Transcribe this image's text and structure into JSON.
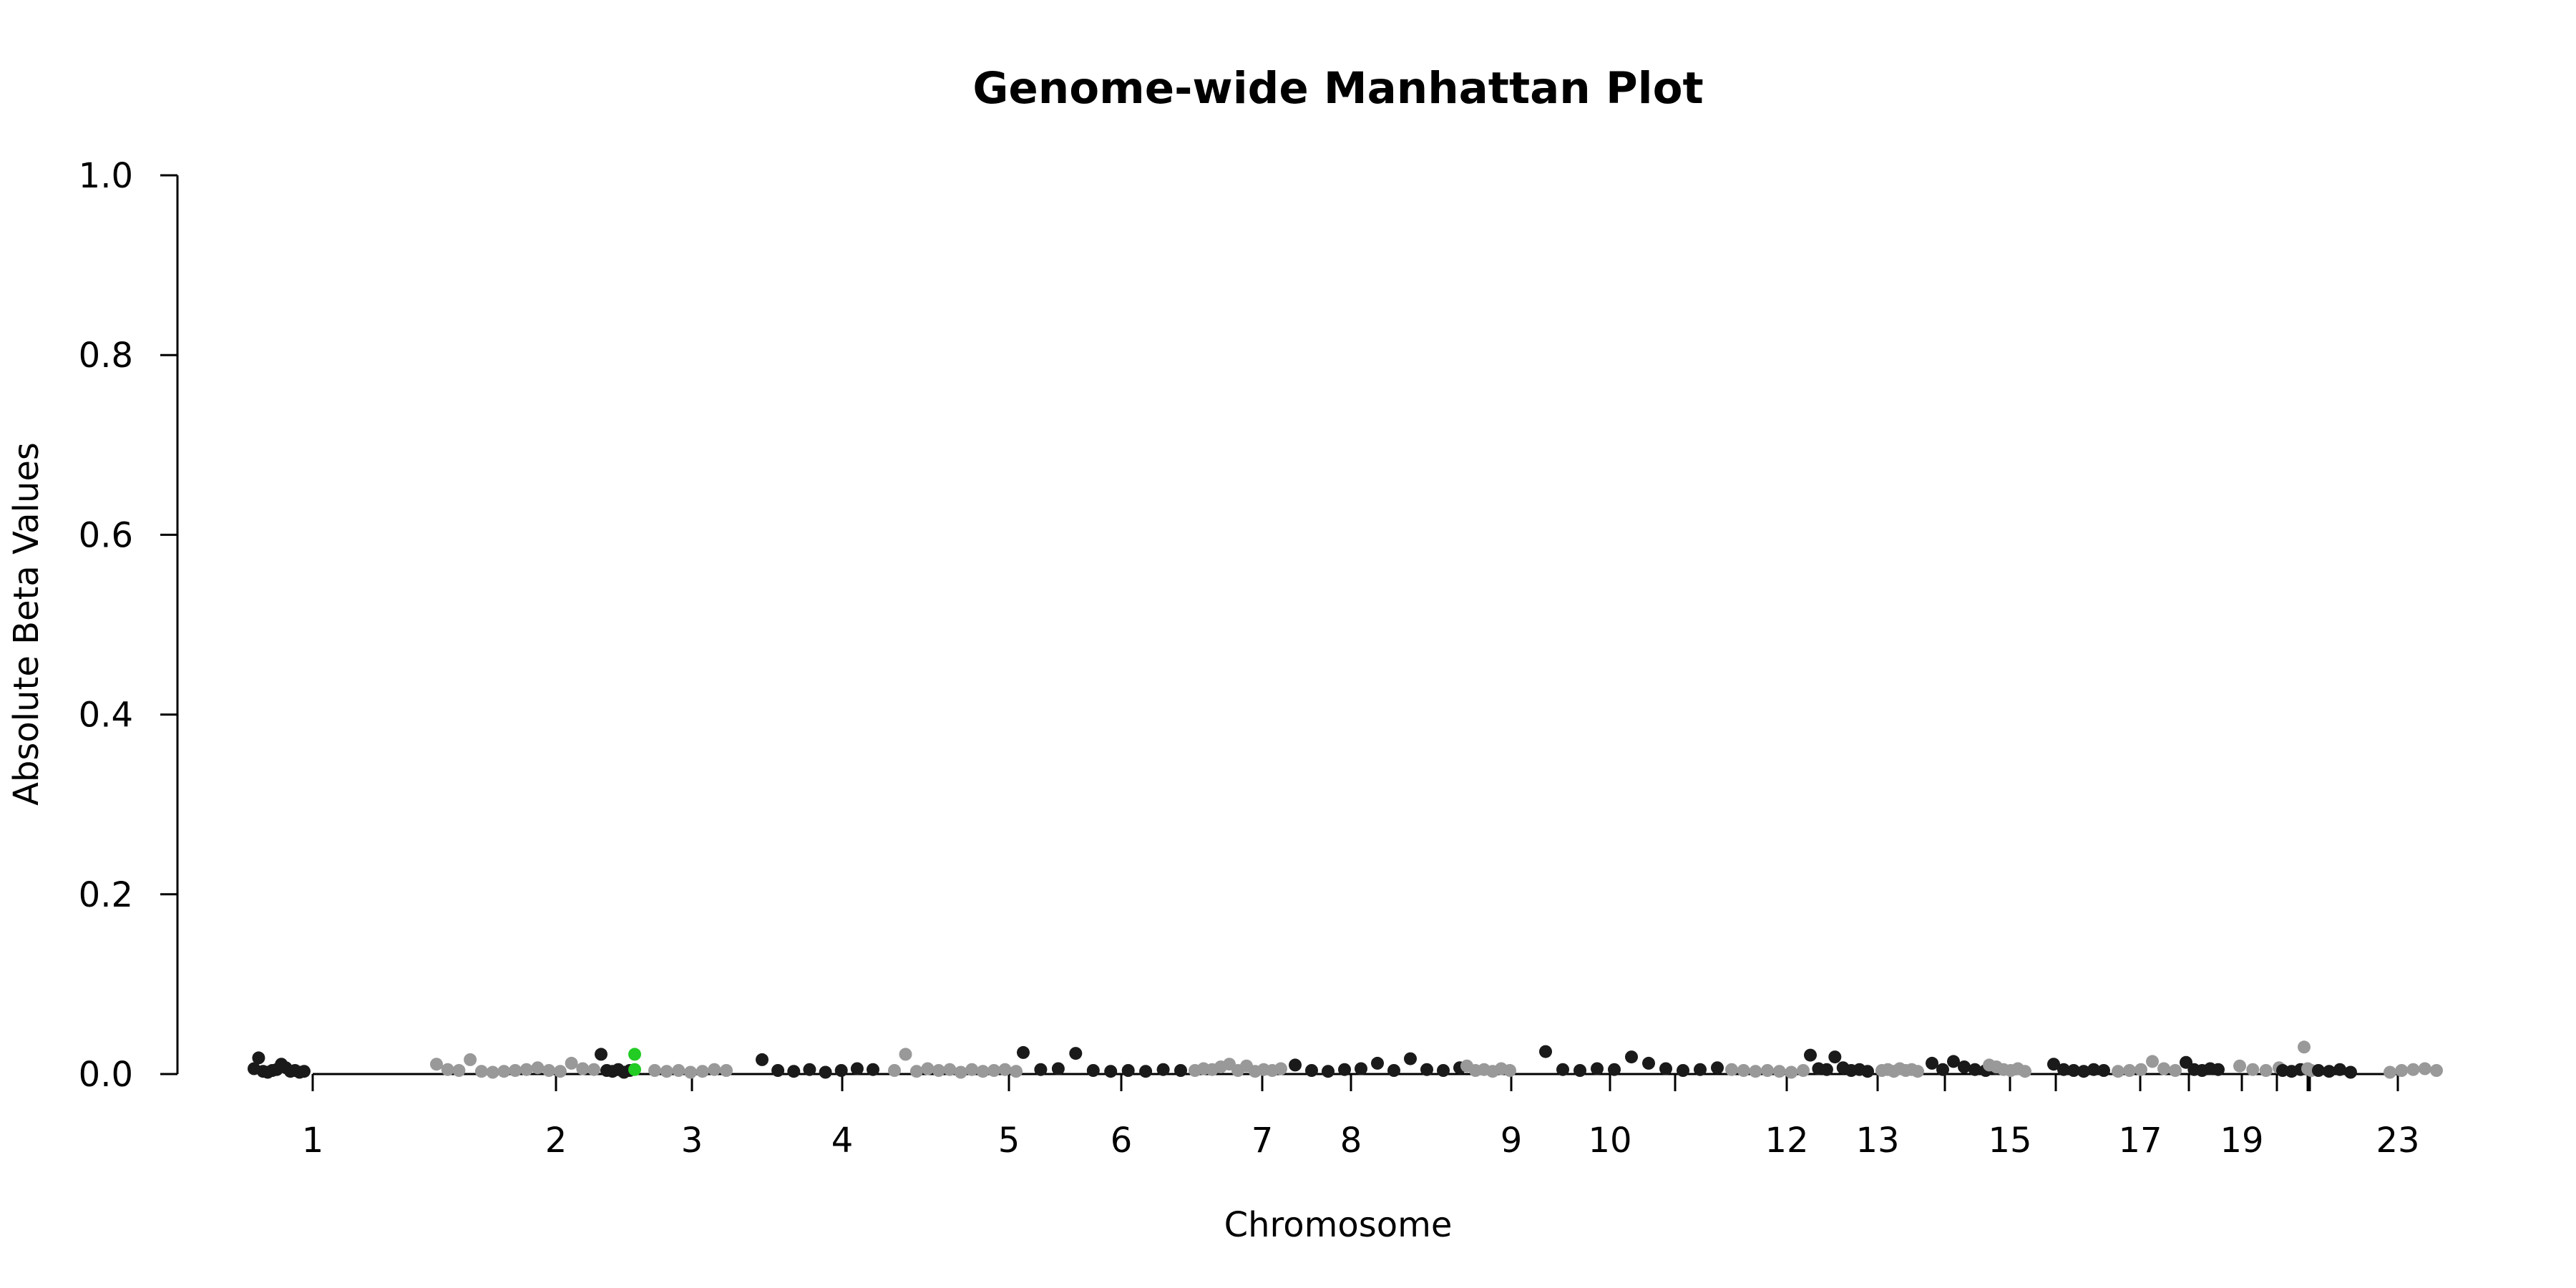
{
  "chart_data": {
    "type": "scatter",
    "title": "Genome-wide Manhattan Plot",
    "xlabel": "Chromosome",
    "ylabel": "Absolute Beta Values",
    "ylim": [
      0,
      1.0
    ],
    "yticks": [
      0.0,
      0.2,
      0.4,
      0.6,
      0.8,
      1.0
    ],
    "ytick_labels": [
      "0.0",
      "0.2",
      "0.4",
      "0.6",
      "0.8",
      "1.0"
    ],
    "chromosome_labels": [
      "1",
      "2",
      "3",
      "4",
      "5",
      "6",
      "7",
      "8",
      "9",
      "10",
      "12",
      "13",
      "15",
      "17",
      "19",
      "23"
    ],
    "grid": false,
    "legend": "none",
    "colors": {
      "odd_chromosome": "#1a1a1a",
      "even_chromosome": "#999999",
      "highlight": "#22cc22",
      "axis": "#000000"
    },
    "chromosomes": [
      {
        "chr": "1",
        "points": [
          0.006,
          0.018,
          0.003,
          0.002,
          0.004,
          0.005,
          0.011,
          0.007,
          0.003,
          0.004,
          0.002,
          0.003
        ]
      },
      {
        "chr": "2",
        "points": [
          0.011,
          0.005,
          0.004,
          0.016,
          0.003,
          0.002,
          0.003,
          0.004,
          0.005,
          0.007,
          0.004,
          0.003,
          0.012,
          0.006,
          0.005
        ]
      },
      {
        "chr": "2b",
        "points": [
          0.022,
          0.004,
          0.003,
          0.005,
          0.002,
          0.004
        ]
      },
      {
        "chr": "3",
        "points": [
          0.004,
          0.003,
          0.004,
          0.002,
          0.003,
          0.005,
          0.004
        ]
      },
      {
        "chr": "4",
        "points": [
          0.016,
          0.004,
          0.003,
          0.005,
          0.002,
          0.004,
          0.006,
          0.005
        ]
      },
      {
        "chr": "5",
        "points": [
          0.004,
          0.022,
          0.003,
          0.006,
          0.004,
          0.005,
          0.002,
          0.005,
          0.003,
          0.004,
          0.005,
          0.003
        ]
      },
      {
        "chr": "6",
        "points": [
          0.024,
          0.005,
          0.006,
          0.023,
          0.004,
          0.003,
          0.004,
          0.003,
          0.005,
          0.004
        ]
      },
      {
        "chr": "7",
        "points": [
          0.004,
          0.006,
          0.005,
          0.008,
          0.011,
          0.004,
          0.009,
          0.003,
          0.005,
          0.004,
          0.006
        ]
      },
      {
        "chr": "8",
        "points": [
          0.01,
          0.004,
          0.003,
          0.005,
          0.006,
          0.012,
          0.004,
          0.017,
          0.005,
          0.004,
          0.007
        ]
      },
      {
        "chr": "9",
        "points": [
          0.009,
          0.004,
          0.005,
          0.003,
          0.006,
          0.004
        ]
      },
      {
        "chr": "10",
        "points": [
          0.025,
          0.005,
          0.004,
          0.006,
          0.005,
          0.019,
          0.012,
          0.006,
          0.004,
          0.005,
          0.007
        ]
      },
      {
        "chr": "12",
        "points": [
          0.005,
          0.004,
          0.003,
          0.004,
          0.003,
          0.002,
          0.004
        ]
      },
      {
        "chr": "12b",
        "points": [
          0.021,
          0.006,
          0.005,
          0.019,
          0.007,
          0.004,
          0.005,
          0.003
        ]
      },
      {
        "chr": "13",
        "points": [
          0.004,
          0.005,
          0.003,
          0.006,
          0.004,
          0.005,
          0.003
        ]
      },
      {
        "chr": "14",
        "points": [
          0.012,
          0.005,
          0.014,
          0.008,
          0.005,
          0.004,
          0.006
        ]
      },
      {
        "chr": "15",
        "points": [
          0.01,
          0.008,
          0.005,
          0.004,
          0.006,
          0.003
        ]
      },
      {
        "chr": "16",
        "points": [
          0.011,
          0.005,
          0.004,
          0.003,
          0.005,
          0.004
        ]
      },
      {
        "chr": "17",
        "points": [
          0.003,
          0.004,
          0.005,
          0.014,
          0.006,
          0.004
        ]
      },
      {
        "chr": "18",
        "points": [
          0.013,
          0.005,
          0.004,
          0.006,
          0.005
        ]
      },
      {
        "chr": "19",
        "points": [
          0.009,
          0.005,
          0.004,
          0.007
        ]
      },
      {
        "chr": "20",
        "points": [
          0.004,
          0.003,
          0.005
        ]
      },
      {
        "chr": "21",
        "points": [
          0.03,
          0.006,
          0.004
        ]
      },
      {
        "chr": "22",
        "points": [
          0.004,
          0.003,
          0.005,
          0.002
        ]
      },
      {
        "chr": "23",
        "points": [
          0.002,
          0.004,
          0.005,
          0.006,
          0.004
        ]
      }
    ],
    "highlighted_points": [
      {
        "chr": "2",
        "value": 0.022
      },
      {
        "chr": "2",
        "value": 0.005
      }
    ]
  }
}
